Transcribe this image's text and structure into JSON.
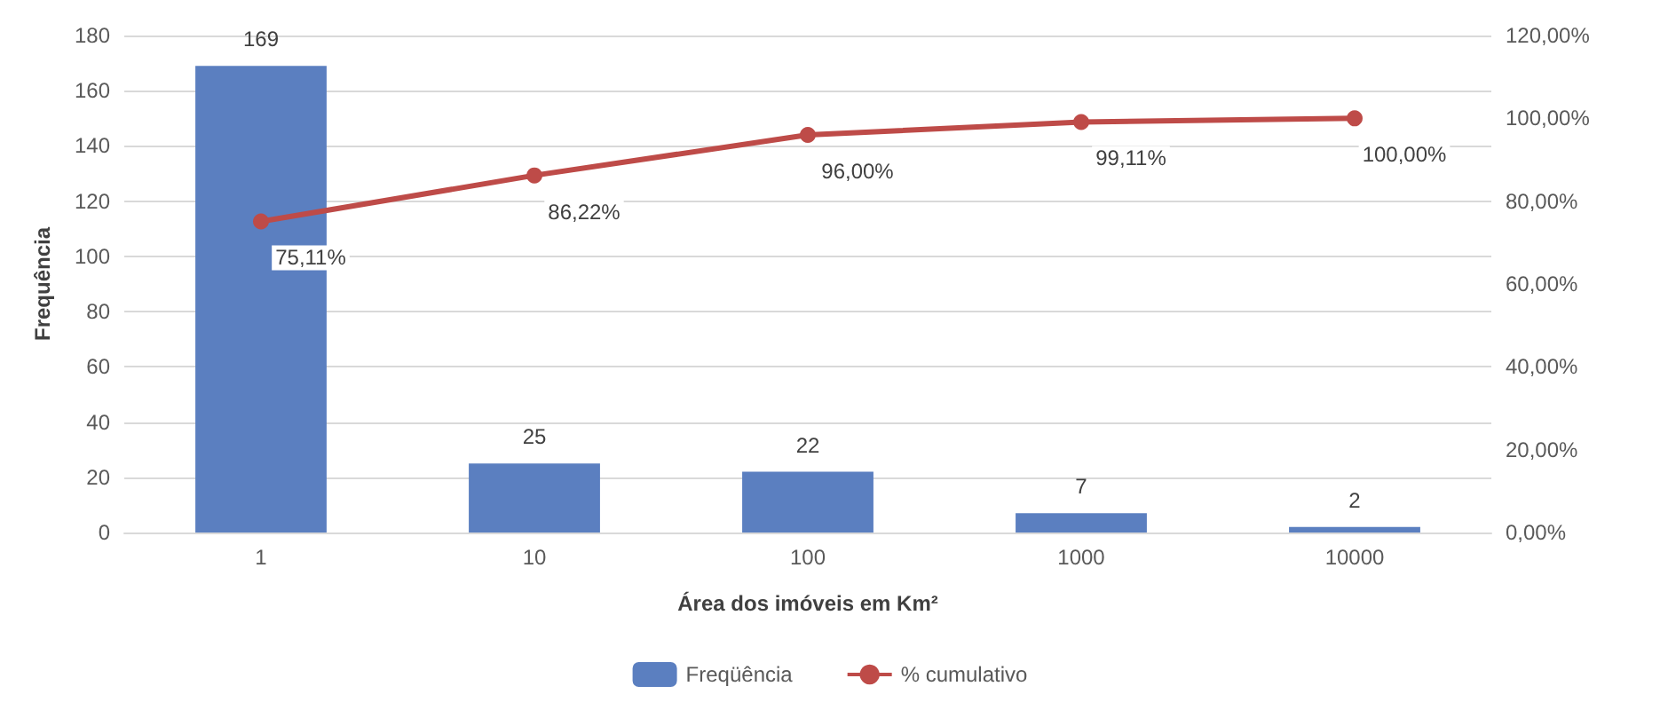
{
  "chart_data": {
    "type": "bar",
    "xlabel": "Área dos imóveis em Km²",
    "ylabel": "Frequência",
    "categories": [
      "1",
      "10",
      "100",
      "1000",
      "10000"
    ],
    "series": [
      {
        "name": "Freqüência",
        "color": "#5b7fc0",
        "values": [
          169,
          25,
          22,
          7,
          2
        ],
        "value_labels": [
          "169",
          "25",
          "22",
          "7",
          "2"
        ]
      },
      {
        "name": "% cumulativo",
        "type": "line",
        "axis": "y2",
        "color": "#be4b48",
        "marker": "circle",
        "values": [
          75.11,
          86.22,
          96.0,
          99.11,
          100.0
        ],
        "value_labels": [
          "75,11%",
          "86,22%",
          "96,00%",
          "99,11%",
          "100,00%"
        ]
      }
    ],
    "ylim": [
      0,
      180
    ],
    "yticks": [
      0,
      20,
      40,
      60,
      80,
      100,
      120,
      140,
      160,
      180
    ],
    "y2lim": [
      0,
      120
    ],
    "y2ticks": [
      {
        "value": 0,
        "label": "0,00%"
      },
      {
        "value": 20,
        "label": "20,00%"
      },
      {
        "value": 40,
        "label": "40,00%"
      },
      {
        "value": 60,
        "label": "60,00%"
      },
      {
        "value": 80,
        "label": "80,00%"
      },
      {
        "value": 100,
        "label": "100,00%"
      },
      {
        "value": 120,
        "label": "120,00%"
      }
    ],
    "grid": "y",
    "legend": "bottom"
  }
}
